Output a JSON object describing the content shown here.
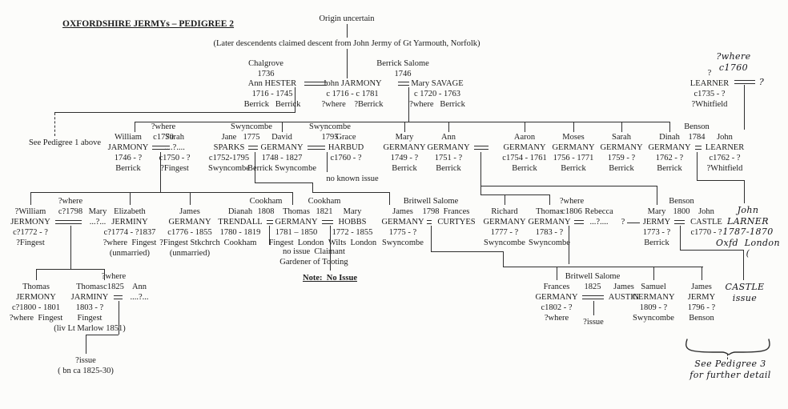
{
  "title": "OXFORDSHIRE JERMYs – PEDIGREE 2",
  "header": {
    "origin": "Origin uncertain",
    "claim": "(Later descendents claimed descent from John Jermy of Gt Yarmouth, Norfolk)"
  },
  "persons": {
    "g2_ann_hester": [
      "Ann HESTER",
      "1716 - 1745",
      "Berrick   Berrick"
    ],
    "g2_john_jarmony": [
      "John JARMONY",
      "c 1716 - c 1781",
      "?where    ?Berrick"
    ],
    "g2_mary_savage": [
      "Mary SAVAGE",
      "c 1720 - 1763",
      "?where   Berrick"
    ],
    "g2_learner_sr": [
      "?",
      "LEARNER",
      "c1735 - ?",
      "?Whitfield"
    ],
    "g2_learner_spouse": [
      "?"
    ],
    "g3_william_jarmony": [
      "William",
      "JARMONY",
      "1746 - ?",
      "Berrick"
    ],
    "g3_sarah_unknown": [
      "Sarah",
      "....?....",
      "c1750 - ?",
      "?Fingest"
    ],
    "g3_jane_sparks": [
      "Jane",
      "SPARKS",
      "c1752-1795",
      "Swyncombe"
    ],
    "g3_david_germany": [
      "David",
      "GERMANY",
      "1748 - 1827",
      "Berrick Swyncombe"
    ],
    "g3_grace_harbud": [
      "Grace",
      "HARBUD",
      "c1760 - ?"
    ],
    "g3_mary_germany": [
      "Mary",
      "GERMANY",
      "1749 - ?",
      "Berrick"
    ],
    "g3_ann_germany": [
      "Ann",
      "GERMANY",
      "1751 - ?",
      "Berrick"
    ],
    "g3_aaron_germany": [
      "Aaron",
      "GERMANY",
      "c1754 - 1761",
      "Berrick"
    ],
    "g3_moses_germany": [
      "Moses",
      "GERMANY",
      "1756 - 1771",
      "Berrick"
    ],
    "g3_sarah_germany": [
      "Sarah",
      "GERMANY",
      "1759 - ?",
      "Berrick"
    ],
    "g3_dinah_germany": [
      "Dinah",
      "GERMANY",
      "1762 - ?",
      "Berrick"
    ],
    "g3_john_learner": [
      "John",
      "LEARNER",
      "c1762 - ?",
      "?Whitfield"
    ],
    "g4_william_jermony": [
      "?William",
      "JERMONY",
      "c?1772 - ?",
      "?Fingest"
    ],
    "g4_mary_unknown": [
      "Mary",
      "...?..."
    ],
    "g4_elizabeth_jerminy": [
      "Elizabeth",
      "JERMINY",
      "c?1774 - ?1837",
      "?where  Fingest",
      "(unmarried)"
    ],
    "g4_james_germany": [
      "James",
      "GERMANY",
      "c1776 - 1855",
      "?Fingest Stkchrch",
      "(unmarried)"
    ],
    "g4_dianah_trendall": [
      "Dianah",
      "TRENDALL",
      "1780 - 1819",
      "Cookham"
    ],
    "g4_thomas_germany": [
      "Thomas",
      "GERMANY",
      "1781 – 1850",
      "Fingest  London"
    ],
    "g4_mary_hobbs": [
      "Mary",
      "HOBBS",
      "1772 - 1855",
      "Wilts  London"
    ],
    "g4_james_germany_sw": [
      "James",
      "GERMANY",
      "1775 - ?",
      "Swyncombe"
    ],
    "g4_frances_curtyes": [
      "Frances",
      "CURTYES"
    ],
    "g4_richard_germany": [
      "Richard",
      "GERMANY",
      "1777 - ?",
      "Swyncombe"
    ],
    "g4_thomas_germany_sw": [
      "Thomas",
      "GERMANY",
      "1783 - ?",
      "Swyncombe"
    ],
    "g4_rebecca_unknown": [
      "Rebecca",
      "...?...."
    ],
    "g4_unknown_spouse": [
      "?"
    ],
    "g4_mary_jermy": [
      "Mary",
      "JERMY",
      "1773 - ?",
      "Berrick"
    ],
    "g4_john_castle": [
      "John",
      "CASTLE",
      "c1770 - ?"
    ],
    "g4_john_larner": [
      "John",
      "LARNER",
      "1787-1870",
      "Oxfd  London",
      "("
    ],
    "g5_thomas_jermony": [
      "Thomas",
      "JERMONY",
      "c?1800 - 1801",
      "?where  Fingest"
    ],
    "g5_thomas_jarminy": [
      "Thomas",
      "JARMINY",
      "1803 - ?",
      "Fingest",
      "(liv Lt Marlow 1851)"
    ],
    "g5_ann_unknown": [
      "Ann",
      "....?..."
    ],
    "g5_frances_germany": [
      "Frances",
      "GERMANY",
      "c1802 - ?",
      "?where"
    ],
    "g5_james_austin": [
      "James",
      "AUSTIN"
    ],
    "g5_samuel_germany": [
      "Samuel",
      "GERMANY",
      "1809 - ?",
      "Swyncombe"
    ],
    "g5_james_jermy": [
      "James",
      "JERMY",
      "1796 - ?",
      "Benson"
    ],
    "g5_castle_issue": [
      "CASTLE",
      "issue"
    ]
  },
  "marriages": {
    "m_chalgrove": {
      "place": "Chalgrove",
      "year": "1736"
    },
    "m_berrick_salome": {
      "place": "Berrick Salome",
      "year": "1746"
    },
    "m_learner": {
      "place": "?where",
      "year": "c1760"
    },
    "m_william_sarah": {
      "place": "?where",
      "year": "c1770"
    },
    "m_jane_david": {
      "place": "Swyncombe",
      "year": "1775"
    },
    "m_david_grace": {
      "place": "Swyncombe",
      "year": "1795"
    },
    "m_dinah_learner": {
      "place": "Benson",
      "year": "1784"
    },
    "m_wjermony_mary": {
      "place": "?where",
      "year": "c?1798"
    },
    "m_dianah_thomas": {
      "place": "Cookham",
      "year": "1808"
    },
    "m_thomas_hobbs": {
      "place": "Cookham",
      "year": "1821"
    },
    "m_james_curtyes": {
      "place": "Britwell Salome",
      "year": "1798"
    },
    "m_thomas_rebecca": {
      "place": "?where",
      "year": "c1806"
    },
    "m_mary_castle": {
      "place": "Benson",
      "year": "1800"
    },
    "m_jarminy_ann": {
      "place": "?where",
      "year": "c1825"
    },
    "m_frances_austin": {
      "place": "Britwell Salome",
      "year": "1825"
    }
  },
  "notes": {
    "see_pedigree1": [
      "See Pedigree 1 above"
    ],
    "no_known_issue": [
      "no known issue"
    ],
    "thomas_claimant": [
      "no issue  Claimant",
      "Gardener of Tooting"
    ],
    "note_no_issue": [
      "Note:  No Issue"
    ],
    "issue_left": [
      "?issue",
      "( bn ca 1825-30)"
    ],
    "issue_austin": [
      "?issue"
    ],
    "see_pedigree3": [
      "See Pedigree 3",
      "for further detail"
    ]
  },
  "colors": {
    "ink": "#2e2e2e",
    "paper": "#fcfcfa"
  }
}
